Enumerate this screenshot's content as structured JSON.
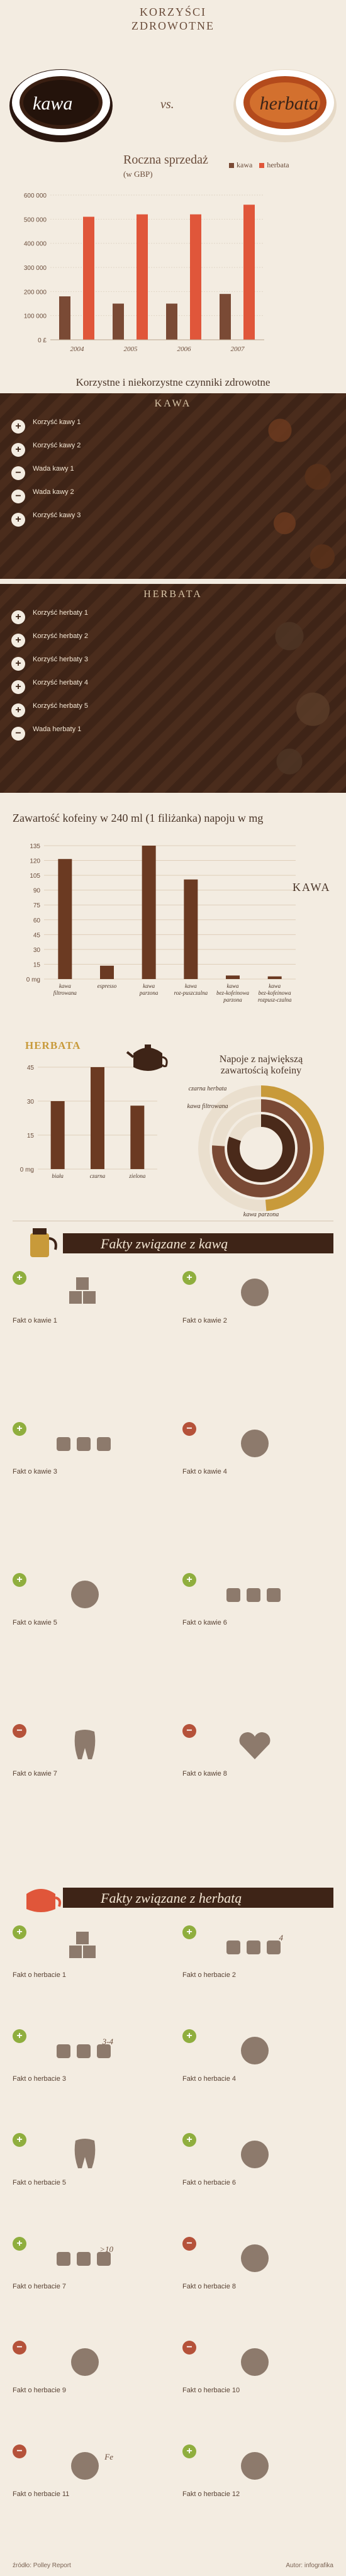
{
  "hero": {
    "title_line1": "KORZYŚCI",
    "title_line2": "ZDROWOTNE",
    "coffee_label": "kawa",
    "vs": "vs.",
    "tea_label": "herbata"
  },
  "colors": {
    "coffee": "#7a4a35",
    "tea": "#e0563a",
    "dark_panel": "#3e2417",
    "accent_green": "#8fae3e",
    "accent_red": "#b5523a",
    "gold": "#c89a3a"
  },
  "sales": {
    "chart_data": {
      "type": "bar",
      "title": "Roczna sprzedaż",
      "ylabel": "(w GBP)",
      "categories": [
        "2004",
        "2005",
        "2006",
        "2007"
      ],
      "series": [
        {
          "name": "kawa",
          "values": [
            180000,
            150000,
            150000,
            190000
          ]
        },
        {
          "name": "herbata",
          "values": [
            510000,
            520000,
            520000,
            560000
          ]
        }
      ],
      "yticks": [
        "0 £",
        "100 000",
        "200 000",
        "300 000",
        "400 000",
        "500 000",
        "600 000"
      ],
      "ylim": [
        0,
        600000
      ],
      "legend": "top-right"
    }
  },
  "factors": {
    "title": "Korzystne i niekorzystne czynniki zdrowotne",
    "coffee": {
      "heading": "KAWA",
      "items": [
        {
          "type": "plus",
          "text": "Korzyść kawy 1"
        },
        {
          "type": "plus",
          "text": "Korzyść kawy 2"
        },
        {
          "type": "minus",
          "text": "Wada kawy 1"
        },
        {
          "type": "minus",
          "text": "Wada kawy 2"
        },
        {
          "type": "plus",
          "text": "Korzyść kawy 3"
        }
      ]
    },
    "tea": {
      "heading": "HERBATA",
      "items": [
        {
          "type": "plus",
          "text": "Korzyść herbaty 1"
        },
        {
          "type": "plus",
          "text": "Korzyść herbaty 2"
        },
        {
          "type": "plus",
          "text": "Korzyść herbaty 3"
        },
        {
          "type": "plus",
          "text": "Korzyść herbaty 4"
        },
        {
          "type": "plus",
          "text": "Korzyść herbaty 5"
        },
        {
          "type": "minus",
          "text": "Wada herbaty 1"
        }
      ]
    }
  },
  "caffeine": {
    "title": "Zawartość kofeiny w 240 ml (1 filiżanka) napoju w mg",
    "coffee_chart": {
      "chart_data": {
        "type": "bar",
        "label": "KAWA",
        "categories": [
          "kawa filtrowana",
          "espresso",
          "kawa parzona",
          "kawa roz-puszczalna",
          "kawa bez-kofeinowa parzona",
          "kawa bez-kofeinowa rozpusz-czalna"
        ],
        "values": [
          135,
          15,
          150,
          112,
          4,
          3
        ],
        "yticks": [
          "0 mg",
          "15",
          "30",
          "45",
          "60",
          "75",
          "90",
          "105",
          "120",
          "135"
        ],
        "ylim": [
          0,
          150
        ]
      }
    },
    "tea_chart": {
      "chart_data": {
        "type": "bar",
        "label": "HERBATA",
        "categories": [
          "biała",
          "czarna",
          "zielona"
        ],
        "values": [
          30,
          45,
          28
        ],
        "yticks": [
          "0 mg",
          "15",
          "30",
          "45"
        ],
        "ylim": [
          0,
          45
        ]
      }
    },
    "donut": {
      "title_line1": "Napoje z największą",
      "title_line2": "zawartością kofeiny",
      "chart_data": {
        "type": "pie",
        "categories": [
          "czarna herbata",
          "kawa filtrowana",
          "kawa parzona"
        ],
        "values": [
          45,
          135,
          150
        ]
      }
    }
  },
  "coffee_facts": {
    "title": "Fakty związane z kawą",
    "items": [
      {
        "type": "plus",
        "text": "Fakt o kawie 1",
        "icon": "sugar-cubes-icon"
      },
      {
        "type": "plus",
        "text": "Fakt o kawie 2",
        "icon": "lab-flask-icon"
      },
      {
        "type": "plus",
        "text": "Fakt o kawie 3",
        "icon": "cups-icon"
      },
      {
        "type": "minus",
        "text": "Fakt o kawie 4",
        "icon": "clock-icon"
      },
      {
        "type": "plus",
        "text": "Fakt o kawie 5",
        "icon": "head-silhouette-icon"
      },
      {
        "type": "plus",
        "text": "Fakt o kawie 6",
        "icon": "coffee-cups-row-icon"
      },
      {
        "type": "minus",
        "text": "Fakt o kawie 7",
        "icon": "tooth-icon"
      },
      {
        "type": "minus",
        "text": "Fakt o kawie 8",
        "icon": "heart-icon"
      }
    ]
  },
  "tea_facts": {
    "title": "Fakty związane z herbatą",
    "items": [
      {
        "type": "plus",
        "text": "Fakt o herbacie 1",
        "icon": "sugar-cubes-icon",
        "badge": ""
      },
      {
        "type": "plus",
        "text": "Fakt o herbacie 2",
        "icon": "tea-cups-icon",
        "badge": "4"
      },
      {
        "type": "plus",
        "text": "Fakt o herbacie 3",
        "icon": "tea-cups-icon",
        "badge": "3-4"
      },
      {
        "type": "plus",
        "text": "Fakt o herbacie 4",
        "icon": "bones-icon",
        "badge": ""
      },
      {
        "type": "plus",
        "text": "Fakt o herbacie 5",
        "icon": "tooth-icon",
        "badge": ""
      },
      {
        "type": "plus",
        "text": "Fakt o herbacie 6",
        "icon": "lips-icon",
        "badge": ""
      },
      {
        "type": "plus",
        "text": "Fakt o herbacie 7",
        "icon": "tea-cups-icon",
        "badge": ">10"
      },
      {
        "type": "minus",
        "text": "Fakt o herbacie 8",
        "icon": "kidney-icon",
        "badge": ""
      },
      {
        "type": "minus",
        "text": "Fakt o herbacie 9",
        "icon": "stomach-icon",
        "badge": ""
      },
      {
        "type": "minus",
        "text": "Fakt o herbacie 10",
        "icon": "milk-bottle-icon",
        "badge": ""
      },
      {
        "type": "minus",
        "text": "Fakt o herbacie 11",
        "icon": "iron-fe-icon",
        "badge": "Fe"
      },
      {
        "type": "plus",
        "text": "Fakt o herbacie 12",
        "icon": "pulse-icon",
        "badge": ""
      }
    ]
  },
  "footer": {
    "left": "źródło: Polley Report",
    "right": "Autor: infografika"
  }
}
